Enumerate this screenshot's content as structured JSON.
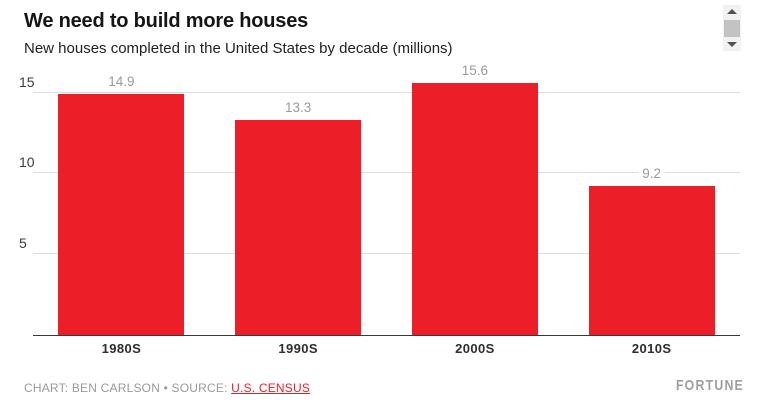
{
  "header": {
    "title": "We need to build more houses",
    "subtitle": "New houses completed in the United States by decade (millions)"
  },
  "chart_data": {
    "type": "bar",
    "title": "We need to build more houses",
    "subtitle": "New houses completed in the United States by decade (millions)",
    "categories": [
      "1980S",
      "1990S",
      "2000S",
      "2010S"
    ],
    "values": [
      14.9,
      13.3,
      15.6,
      9.2
    ],
    "value_labels": [
      "14.9",
      "13.3",
      "15.6",
      "9.2"
    ],
    "xlabel": "",
    "ylabel": "",
    "yticks": [
      5,
      10,
      15
    ],
    "ytick_labels": [
      "5",
      "10",
      "15"
    ],
    "ylim": [
      0,
      16.7
    ],
    "grid": "horizontal",
    "legend": "none",
    "bar_color": "#ec1f28"
  },
  "footer": {
    "credit": "CHART: BEN CARLSON • SOURCE:",
    "source_link": "U.S. CENSUS",
    "brand": "FORTUNE"
  },
  "colors": {
    "accent_red": "#ec1f28",
    "gridline": "#dddddd",
    "axis_line": "#383838",
    "muted_text": "#9a9a9a",
    "dark_text": "#151515"
  }
}
